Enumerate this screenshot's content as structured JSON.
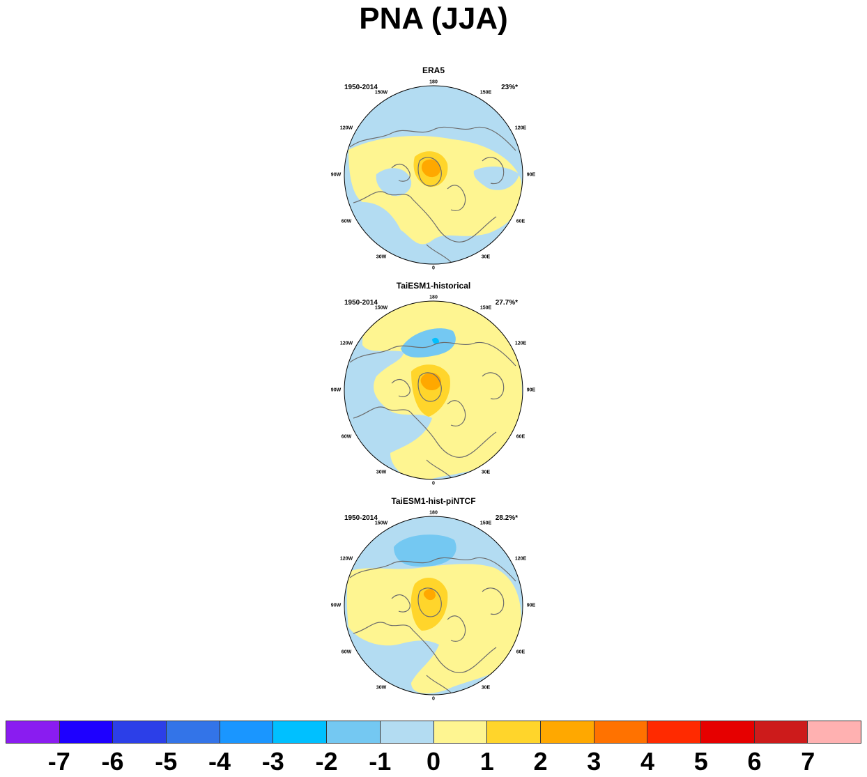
{
  "title": "PNA (JJA)",
  "panels": [
    {
      "title": "ERA5",
      "period": "1950-2014",
      "variance": "23%*"
    },
    {
      "title": "TaiESM1-historical",
      "period": "1950-2014",
      "variance": "27.7%*"
    },
    {
      "title": "TaiESM1-hist-piNTCF",
      "period": "1950-2014",
      "variance": "28.2%*"
    }
  ],
  "longitude_labels": [
    "180",
    "150E",
    "120E",
    "90E",
    "60E",
    "30E",
    "0",
    "30W",
    "60W",
    "90W",
    "120W",
    "150W"
  ],
  "colorbar": {
    "colors": [
      "#8a1cf0",
      "#1e00ff",
      "#2c3fe8",
      "#3374e8",
      "#1a96ff",
      "#00c0ff",
      "#74c8f2",
      "#b3dcf2",
      "#fef591",
      "#ffd52b",
      "#ffa800",
      "#ff7200",
      "#ff2a00",
      "#e60000",
      "#cd1b1b",
      "#ffb1b1"
    ],
    "labels": [
      "-7",
      "-6",
      "-5",
      "-4",
      "-3",
      "-2",
      "-1",
      "0",
      "1",
      "2",
      "3",
      "4",
      "5",
      "6",
      "7"
    ]
  }
}
